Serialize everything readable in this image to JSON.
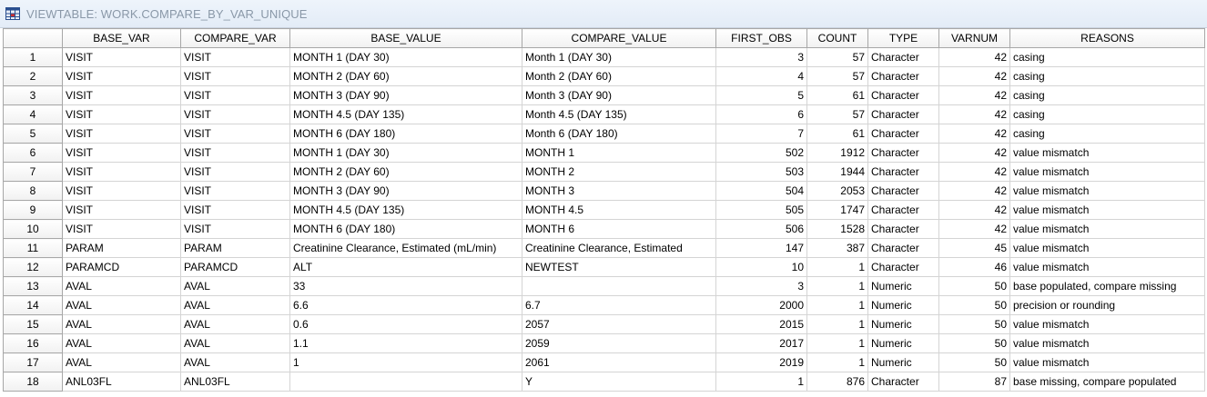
{
  "window": {
    "title": "VIEWTABLE: WORK.COMPARE_BY_VAR_UNIQUE",
    "icon": "table-grid-icon"
  },
  "table": {
    "columns": [
      "",
      "BASE_VAR",
      "COMPARE_VAR",
      "BASE_VALUE",
      "COMPARE_VALUE",
      "FIRST_OBS",
      "COUNT",
      "TYPE",
      "VARNUM",
      "REASONS"
    ],
    "rows": [
      [
        "1",
        "VISIT",
        "VISIT",
        "MONTH 1 (DAY 30)",
        "Month 1 (DAY 30)",
        "3",
        "57",
        "Character",
        "42",
        "casing"
      ],
      [
        "2",
        "VISIT",
        "VISIT",
        "MONTH 2 (DAY 60)",
        "Month 2 (DAY 60)",
        "4",
        "57",
        "Character",
        "42",
        "casing"
      ],
      [
        "3",
        "VISIT",
        "VISIT",
        "MONTH 3 (DAY 90)",
        "Month 3 (DAY 90)",
        "5",
        "61",
        "Character",
        "42",
        "casing"
      ],
      [
        "4",
        "VISIT",
        "VISIT",
        "MONTH 4.5 (DAY 135)",
        "Month 4.5 (DAY 135)",
        "6",
        "57",
        "Character",
        "42",
        "casing"
      ],
      [
        "5",
        "VISIT",
        "VISIT",
        "MONTH 6 (DAY 180)",
        "Month 6 (DAY 180)",
        "7",
        "61",
        "Character",
        "42",
        "casing"
      ],
      [
        "6",
        "VISIT",
        "VISIT",
        "MONTH 1 (DAY 30)",
        "MONTH 1",
        "502",
        "1912",
        "Character",
        "42",
        "value mismatch"
      ],
      [
        "7",
        "VISIT",
        "VISIT",
        "MONTH 2 (DAY 60)",
        "MONTH 2",
        "503",
        "1944",
        "Character",
        "42",
        "value mismatch"
      ],
      [
        "8",
        "VISIT",
        "VISIT",
        "MONTH 3 (DAY 90)",
        "MONTH 3",
        "504",
        "2053",
        "Character",
        "42",
        "value mismatch"
      ],
      [
        "9",
        "VISIT",
        "VISIT",
        "MONTH 4.5 (DAY 135)",
        "MONTH 4.5",
        "505",
        "1747",
        "Character",
        "42",
        "value mismatch"
      ],
      [
        "10",
        "VISIT",
        "VISIT",
        "MONTH 6 (DAY 180)",
        "MONTH 6",
        "506",
        "1528",
        "Character",
        "42",
        "value mismatch"
      ],
      [
        "11",
        "PARAM",
        "PARAM",
        "Creatinine Clearance, Estimated (mL/min)",
        "Creatinine Clearance, Estimated",
        "147",
        "387",
        "Character",
        "45",
        "value mismatch"
      ],
      [
        "12",
        "PARAMCD",
        "PARAMCD",
        "ALT",
        "NEWTEST",
        "10",
        "1",
        "Character",
        "46",
        "value mismatch"
      ],
      [
        "13",
        "AVAL",
        "AVAL",
        "33",
        "",
        "3",
        "1",
        "Numeric",
        "50",
        "base populated, compare missing"
      ],
      [
        "14",
        "AVAL",
        "AVAL",
        "6.6",
        "6.7",
        "2000",
        "1",
        "Numeric",
        "50",
        "precision or rounding"
      ],
      [
        "15",
        "AVAL",
        "AVAL",
        "0.6",
        "2057",
        "2015",
        "1",
        "Numeric",
        "50",
        "value mismatch"
      ],
      [
        "16",
        "AVAL",
        "AVAL",
        "1.1",
        "2059",
        "2017",
        "1",
        "Numeric",
        "50",
        "value mismatch"
      ],
      [
        "17",
        "AVAL",
        "AVAL",
        "1",
        "2061",
        "2019",
        "1",
        "Numeric",
        "50",
        "value mismatch"
      ],
      [
        "18",
        "ANL03FL",
        "ANL03FL",
        "",
        "Y",
        "1",
        "876",
        "Character",
        "87",
        "base missing, compare populated"
      ]
    ]
  }
}
